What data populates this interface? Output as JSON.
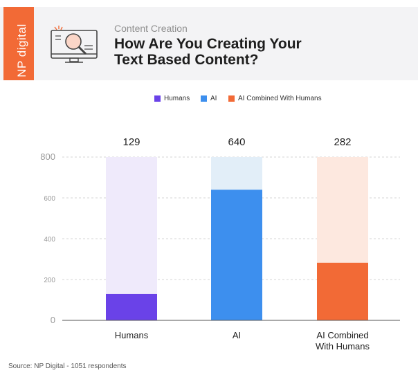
{
  "brand": {
    "name": "NP digital",
    "accent": "#f26a36"
  },
  "header": {
    "subtitle": "Content Creation",
    "title_line1": "How Are You Creating Your",
    "title_line2": "Text Based Content?",
    "icon": "monitor-magnifier-icon"
  },
  "chart_data": {
    "type": "bar",
    "categories": [
      "Humans",
      "AI",
      "AI Combined\nWith Humans"
    ],
    "values": [
      129,
      640,
      282
    ],
    "series": [
      {
        "name": "Humans",
        "value": 129,
        "bar_color": "#6a42e8",
        "bg_color": "#efeafb"
      },
      {
        "name": "AI",
        "value": 640,
        "bar_color": "#3d8fee",
        "bg_color": "#e2eef8"
      },
      {
        "name": "AI Combined With Humans",
        "value": 282,
        "bar_color": "#f26a36",
        "bg_color": "#fde8df"
      }
    ],
    "yticks": [
      0,
      200,
      400,
      600,
      800
    ],
    "ylim": [
      0,
      800
    ],
    "grid": true,
    "legend": "top-center",
    "xlabel": "",
    "ylabel": "",
    "title": ""
  },
  "footer": {
    "source": "Source: NP Digital - 1051 respondents"
  }
}
